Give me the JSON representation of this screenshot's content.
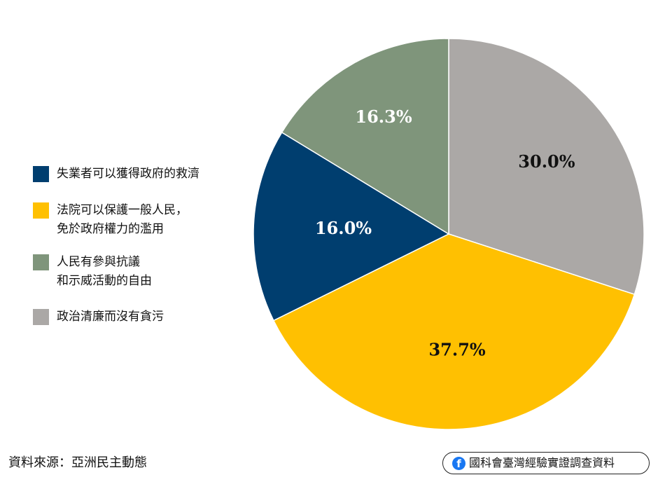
{
  "chart_data": {
    "type": "pie",
    "title": "",
    "categories": [
      "政治清廉而沒有貪污",
      "法院可以保護一般人民，\n免於政府權力的濫用",
      "失業者可以獲得政府的救濟",
      "人民有參與抗議\n和示威活動的自由"
    ],
    "values": [
      30.0,
      37.7,
      16.0,
      16.3
    ],
    "data_labels": [
      "30.0%",
      "37.7%",
      "16.0%",
      "16.3%"
    ],
    "colors": [
      "#aba8a6",
      "#ffc001",
      "#003e6f",
      "#7f957b"
    ],
    "label_colors": [
      "#111111",
      "#111111",
      "#ffffff",
      "#ffffff"
    ],
    "start_angle_deg": 90,
    "direction": "clockwise",
    "legend_placement": "left"
  },
  "legend": {
    "items": [
      {
        "label": "失業者可以獲得政府的救濟",
        "color": "#003e6f"
      },
      {
        "label": "法院可以保護一般人民，\n免於政府權力的濫用",
        "color": "#ffc001"
      },
      {
        "label": "人民有參與抗議\n和示威活動的自由",
        "color": "#7f957b"
      },
      {
        "label": "政治清廉而沒有貪污",
        "color": "#aba8a6"
      }
    ]
  },
  "footer": {
    "source": "資料來源：亞洲民主動態",
    "badge_text": "國科會臺灣經驗實證調查資料",
    "badge_icon": "facebook-icon",
    "badge_icon_glyph": "f"
  }
}
